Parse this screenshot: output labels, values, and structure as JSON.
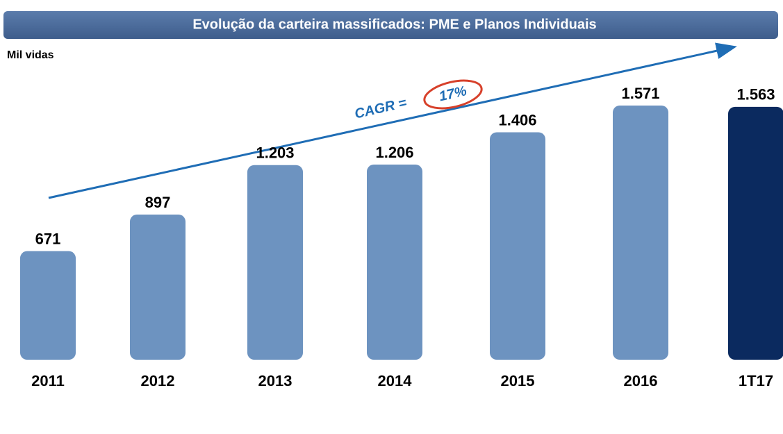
{
  "chart_data": {
    "type": "bar",
    "title": "Evolução da carteira massificados: PME e Planos Individuais",
    "subtitle": "Mil vidas",
    "annotations": [
      "CAGR =",
      "17%"
    ],
    "categories": [
      "2011",
      "2012",
      "2013",
      "2014",
      "2015",
      "2016",
      "1T17"
    ],
    "values": [
      671,
      897,
      1203,
      1206,
      1406,
      1571,
      1563
    ],
    "value_labels": [
      "671",
      "897",
      "1.203",
      "1.206",
      "1.406",
      "1.571",
      "1.563"
    ],
    "colors": [
      "#6d93c0",
      "#6d93c0",
      "#6d93c0",
      "#6d93c0",
      "#6d93c0",
      "#6d93c0",
      "#0b2a5f"
    ]
  }
}
